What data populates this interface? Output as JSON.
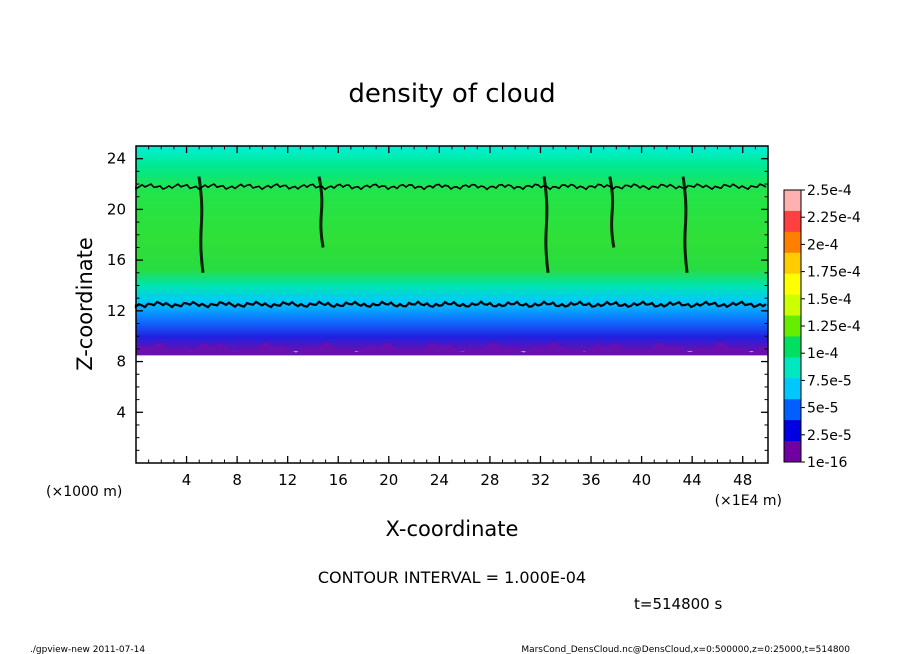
{
  "chart_data": {
    "type": "heatmap",
    "title": "density of cloud",
    "xlabel": "X-coordinate",
    "ylabel": "Z-coordinate",
    "x_unit": "(×1E4 m)",
    "y_unit": "(×1000 m)",
    "xlim": [
      0,
      50
    ],
    "ylim": [
      0,
      25
    ],
    "x_ticks": [
      "4",
      "8",
      "12",
      "16",
      "20",
      "24",
      "28",
      "32",
      "36",
      "40",
      "44",
      "48"
    ],
    "y_ticks": [
      "4",
      "8",
      "12",
      "16",
      "20",
      "24"
    ],
    "cloud_base_z": 8.8,
    "cloud_top_z": 25,
    "contour_levels_z": [
      21.8,
      12.5
    ],
    "black_plumes_x": [
      5.3,
      14.8,
      32.6,
      37.8,
      43.6
    ],
    "colorbar": {
      "labels": [
        "2.5e-4",
        "2.25e-4",
        "2e-4",
        "1.75e-4",
        "1.5e-4",
        "1.25e-4",
        "1e-4",
        "7.5e-5",
        "5e-5",
        "2.5e-5",
        "1e-16"
      ],
      "colors": [
        "#ffb0b0",
        "#ff4040",
        "#ff8000",
        "#ffcc00",
        "#ffff00",
        "#ccff00",
        "#66ee00",
        "#00e060",
        "#00e8c0",
        "#00c8ff",
        "#0060ff",
        "#0000e0",
        "#7000a0"
      ]
    },
    "contour_interval": "CONTOUR INTERVAL = 1.000E-04",
    "time_label": "t=514800 s"
  },
  "footer": {
    "left": "./gpview-new  2011-07-14",
    "right": "MarsCond_DensCloud.nc@DensCloud,x=0:500000,z=0:25000,t=514800"
  }
}
